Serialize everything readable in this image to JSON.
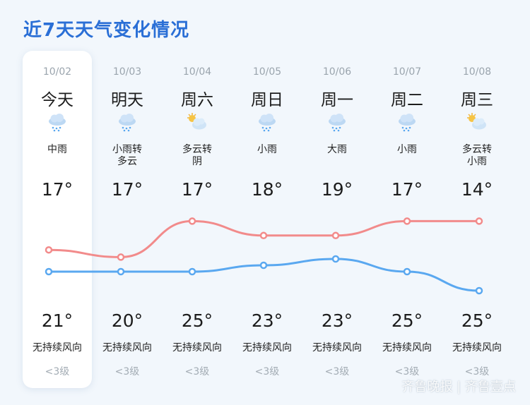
{
  "title": "近7天天气变化情况",
  "days": [
    {
      "date": "10/02",
      "name": "今天",
      "condition": "中雨",
      "icon": "rain-icon",
      "low": "17°",
      "high": "21°",
      "wind": "无持续风向",
      "level": "<3级"
    },
    {
      "date": "10/03",
      "name": "明天",
      "condition": "小雨转\n多云",
      "icon": "rain-icon",
      "low": "17°",
      "high": "20°",
      "wind": "无持续风向",
      "level": "<3级"
    },
    {
      "date": "10/04",
      "name": "周六",
      "condition": "多云转\n阴",
      "icon": "sun-cloud-icon",
      "low": "17°",
      "high": "25°",
      "wind": "无持续风向",
      "level": "<3级"
    },
    {
      "date": "10/05",
      "name": "周日",
      "condition": "小雨",
      "icon": "rain-icon",
      "low": "18°",
      "high": "23°",
      "wind": "无持续风向",
      "level": "<3级"
    },
    {
      "date": "10/06",
      "name": "周一",
      "condition": "大雨",
      "icon": "rain-icon",
      "low": "19°",
      "high": "23°",
      "wind": "无持续风向",
      "level": "<3级"
    },
    {
      "date": "10/07",
      "name": "周二",
      "condition": "小雨",
      "icon": "rain-icon",
      "low": "17°",
      "high": "25°",
      "wind": "无持续风向",
      "level": "<3级"
    },
    {
      "date": "10/08",
      "name": "周三",
      "condition": "多云转\n小雨",
      "icon": "sun-cloud-icon",
      "low": "14°",
      "high": "25°",
      "wind": "无持续风向",
      "level": "<3级"
    }
  ],
  "colors": {
    "high_line": "#f28b8b",
    "low_line": "#5aa8f0",
    "title": "#2a6fd6"
  },
  "watermark": "齐鲁晚报 | 齐鲁壹点"
}
